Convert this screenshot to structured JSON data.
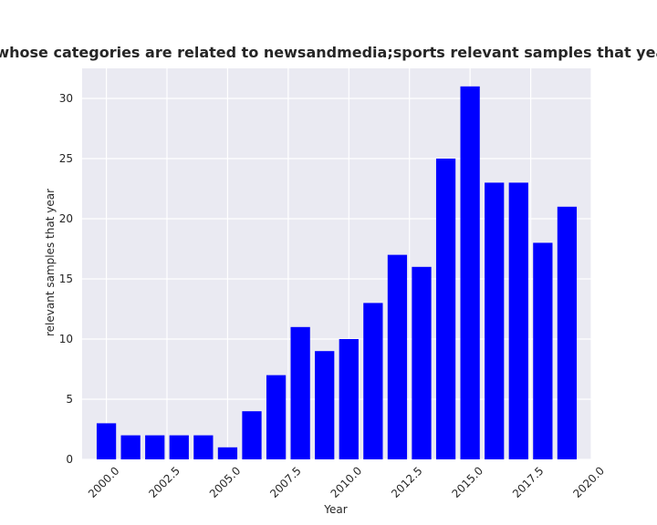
{
  "chart_data": {
    "type": "bar",
    "title": "Percentage of apps whose categories are related to newsandmedia;sports relevant samples that year in privacy policies",
    "xlabel": "Year",
    "ylabel": "relevant samples that year",
    "x": [
      2000,
      2001,
      2002,
      2003,
      2004,
      2005,
      2006,
      2007,
      2008,
      2009,
      2010,
      2011,
      2012,
      2013,
      2014,
      2015,
      2016,
      2017,
      2018,
      2019
    ],
    "values": [
      3,
      2,
      2,
      2,
      2,
      1,
      4,
      7,
      11,
      9,
      10,
      13,
      17,
      16,
      25,
      31,
      23,
      23,
      18,
      21
    ],
    "xlim": [
      1999.0,
      2020.0
    ],
    "ylim": [
      0,
      32.5
    ],
    "xticks": [
      2000.0,
      2002.5,
      2005.0,
      2007.5,
      2010.0,
      2012.5,
      2015.0,
      2017.5,
      2020.0
    ],
    "xtick_labels": [
      "2000.0",
      "2002.5",
      "2005.0",
      "2007.5",
      "2010.0",
      "2012.5",
      "2015.0",
      "2017.5",
      "2020.0"
    ],
    "yticks": [
      0,
      5,
      10,
      15,
      20,
      25,
      30
    ],
    "ytick_labels": [
      "0",
      "5",
      "10",
      "15",
      "20",
      "25",
      "30"
    ],
    "grid": true,
    "colors": {
      "bar": "#0000ff",
      "plot_bg": "#eaeaf2",
      "grid": "#ffffff"
    }
  }
}
